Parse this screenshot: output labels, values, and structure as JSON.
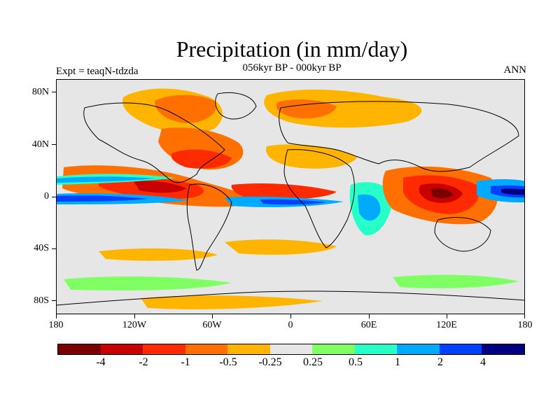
{
  "title": "Precipitation (in mm/day)",
  "subtitle": "056kyr BP - 000kyr BP",
  "left_label": "Expt = teaqN-tdzda",
  "right_label": "ANN",
  "y_ticks": [
    "80N",
    "40N",
    "0",
    "40S",
    "80S"
  ],
  "x_ticks": [
    "180",
    "120W",
    "60W",
    "0",
    "60E",
    "120E",
    "180"
  ],
  "colorbar": {
    "colors": [
      "#7a0000",
      "#c80000",
      "#ff2a00",
      "#ff7000",
      "#ffb400",
      "#e6e6e6",
      "#80ff64",
      "#28ffc8",
      "#00aaff",
      "#0040ff",
      "#000080"
    ],
    "labels": [
      "-4",
      "-2",
      "-1",
      "-0.5",
      "-0.25",
      "0.25",
      "0.5",
      "1",
      "2",
      "4"
    ]
  }
}
